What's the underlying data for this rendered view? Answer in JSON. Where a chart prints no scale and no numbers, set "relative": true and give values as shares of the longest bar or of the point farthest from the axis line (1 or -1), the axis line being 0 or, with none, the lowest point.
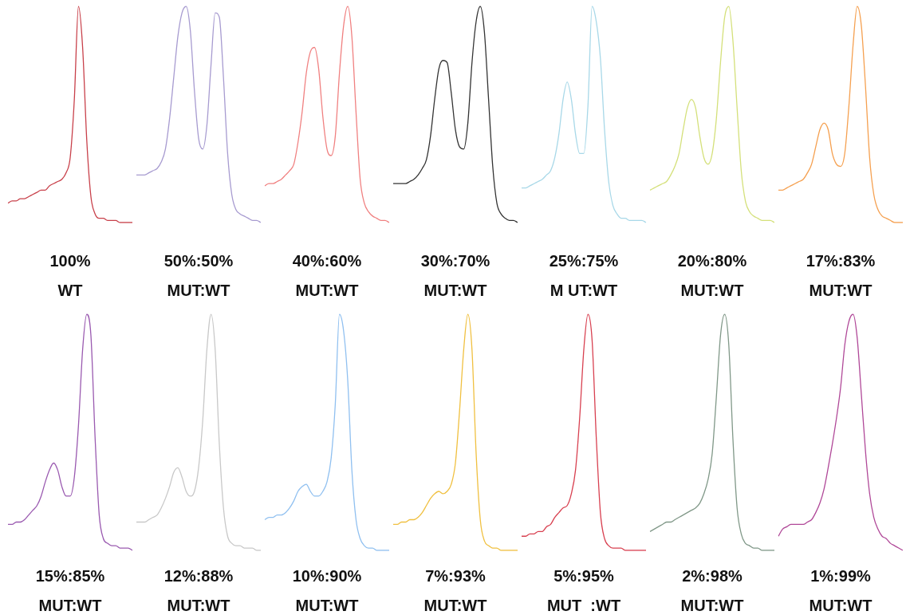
{
  "chart_data": [
    {
      "type": "line",
      "relative": true,
      "marker": "none",
      "categories": [
        null,
        null,
        null,
        null,
        null,
        null,
        null,
        null,
        null,
        null,
        null,
        null,
        null,
        null,
        null,
        null,
        null,
        null,
        null,
        null,
        null,
        null,
        null,
        null,
        null,
        null,
        null,
        null,
        null,
        null,
        null
      ],
      "series": [
        {
          "color": "#c8404a",
          "values": [
            0.09,
            0.1,
            0.1,
            0.11,
            0.11,
            0.12,
            0.13,
            0.14,
            0.15,
            0.15,
            0.17,
            0.18,
            0.19,
            0.2,
            0.23,
            0.3,
            0.57,
            1,
            0.81,
            0.38,
            0.12,
            0.04,
            0.02,
            0.02,
            0.01,
            0.01,
            0.01,
            0,
            0,
            0,
            0
          ]
        }
      ],
      "annotations": [
        "100%",
        "WT"
      ]
    },
    {
      "type": "line",
      "relative": true,
      "marker": "none",
      "categories": [
        null,
        null,
        null,
        null,
        null,
        null,
        null,
        null,
        null,
        null,
        null,
        null,
        null,
        null,
        null,
        null,
        null,
        null,
        null,
        null,
        null,
        null,
        null,
        null,
        null,
        null,
        null,
        null,
        null,
        null,
        null
      ],
      "series": [
        {
          "color": "#a79bd0",
          "values": [
            0.22,
            0.22,
            0.22,
            0.23,
            0.24,
            0.25,
            0.28,
            0.34,
            0.48,
            0.67,
            0.86,
            0.97,
            1,
            0.89,
            0.61,
            0.39,
            0.34,
            0.45,
            0.73,
            0.97,
            0.95,
            0.67,
            0.32,
            0.13,
            0.06,
            0.04,
            0.03,
            0.02,
            0.01,
            0.01,
            0
          ]
        }
      ],
      "annotations": [
        "50%:50%",
        "MUT:WT"
      ]
    },
    {
      "type": "line",
      "relative": true,
      "marker": "none",
      "categories": [
        null,
        null,
        null,
        null,
        null,
        null,
        null,
        null,
        null,
        null,
        null,
        null,
        null,
        null,
        null,
        null,
        null,
        null,
        null,
        null,
        null,
        null,
        null,
        null,
        null,
        null,
        null,
        null,
        null,
        null,
        null
      ],
      "series": [
        {
          "color": "#f08080",
          "values": [
            0.17,
            0.18,
            0.18,
            0.19,
            0.2,
            0.22,
            0.24,
            0.27,
            0.37,
            0.51,
            0.69,
            0.79,
            0.81,
            0.71,
            0.49,
            0.34,
            0.31,
            0.4,
            0.69,
            0.91,
            1,
            0.86,
            0.51,
            0.2,
            0.09,
            0.05,
            0.03,
            0.02,
            0.01,
            0.01,
            0
          ]
        }
      ],
      "annotations": [
        "40%:60%",
        "MUT:WT"
      ]
    },
    {
      "type": "line",
      "relative": true,
      "marker": "none",
      "categories": [
        null,
        null,
        null,
        null,
        null,
        null,
        null,
        null,
        null,
        null,
        null,
        null,
        null,
        null,
        null,
        null,
        null,
        null,
        null,
        null,
        null,
        null,
        null,
        null,
        null,
        null,
        null,
        null,
        null,
        null,
        null
      ],
      "series": [
        {
          "color": "#333333",
          "values": [
            0.18,
            0.18,
            0.18,
            0.18,
            0.19,
            0.2,
            0.22,
            0.25,
            0.29,
            0.4,
            0.57,
            0.71,
            0.75,
            0.74,
            0.6,
            0.43,
            0.35,
            0.34,
            0.46,
            0.74,
            0.93,
            1,
            0.88,
            0.57,
            0.26,
            0.09,
            0.04,
            0.02,
            0.01,
            0.01,
            0
          ]
        }
      ],
      "annotations": [
        "30%:70%",
        "MUT:WT"
      ]
    },
    {
      "type": "line",
      "relative": true,
      "marker": "none",
      "categories": [
        null,
        null,
        null,
        null,
        null,
        null,
        null,
        null,
        null,
        null,
        null,
        null,
        null,
        null,
        null,
        null,
        null,
        null,
        null,
        null,
        null,
        null,
        null,
        null,
        null,
        null,
        null,
        null,
        null,
        null,
        null
      ],
      "series": [
        {
          "color": "#a8d8e8",
          "values": [
            0.16,
            0.16,
            0.17,
            0.18,
            0.19,
            0.2,
            0.22,
            0.24,
            0.3,
            0.41,
            0.57,
            0.65,
            0.57,
            0.41,
            0.32,
            0.32,
            0.54,
            1,
            0.93,
            0.76,
            0.43,
            0.19,
            0.08,
            0.04,
            0.02,
            0.02,
            0.01,
            0.01,
            0.01,
            0.01,
            0
          ]
        }
      ],
      "annotations": [
        "25%:75%",
        "M UT:WT"
      ]
    },
    {
      "type": "line",
      "relative": true,
      "marker": "none",
      "categories": [
        null,
        null,
        null,
        null,
        null,
        null,
        null,
        null,
        null,
        null,
        null,
        null,
        null,
        null,
        null,
        null,
        null,
        null,
        null,
        null,
        null,
        null,
        null,
        null,
        null,
        null,
        null,
        null,
        null,
        null,
        null
      ],
      "series": [
        {
          "color": "#d4e07a",
          "values": [
            0.15,
            0.16,
            0.17,
            0.18,
            0.19,
            0.22,
            0.26,
            0.32,
            0.43,
            0.53,
            0.57,
            0.53,
            0.4,
            0.3,
            0.27,
            0.32,
            0.48,
            0.74,
            0.95,
            1,
            0.84,
            0.53,
            0.24,
            0.1,
            0.05,
            0.03,
            0.02,
            0.01,
            0.01,
            0.01,
            0
          ]
        }
      ],
      "annotations": [
        "20%:80%",
        "MUT:WT"
      ]
    },
    {
      "type": "line",
      "relative": true,
      "marker": "none",
      "categories": [
        null,
        null,
        null,
        null,
        null,
        null,
        null,
        null,
        null,
        null,
        null,
        null,
        null,
        null,
        null,
        null,
        null,
        null,
        null,
        null,
        null,
        null,
        null,
        null,
        null,
        null,
        null,
        null,
        null,
        null,
        null
      ],
      "series": [
        {
          "color": "#f5a050",
          "values": [
            0.15,
            0.15,
            0.16,
            0.17,
            0.18,
            0.19,
            0.2,
            0.23,
            0.27,
            0.35,
            0.43,
            0.46,
            0.43,
            0.32,
            0.27,
            0.26,
            0.32,
            0.54,
            0.82,
            1,
            0.91,
            0.63,
            0.3,
            0.13,
            0.06,
            0.03,
            0.02,
            0.01,
            0,
            0,
            0
          ]
        }
      ],
      "annotations": [
        "17%:83%",
        "MUT:WT"
      ]
    },
    {
      "type": "line",
      "relative": true,
      "marker": "none",
      "categories": [
        null,
        null,
        null,
        null,
        null,
        null,
        null,
        null,
        null,
        null,
        null,
        null,
        null,
        null,
        null,
        null,
        null,
        null,
        null,
        null,
        null,
        null,
        null,
        null,
        null,
        null,
        null,
        null,
        null,
        null,
        null
      ],
      "series": [
        {
          "color": "#9a5ab0",
          "values": [
            0.11,
            0.11,
            0.12,
            0.12,
            0.13,
            0.15,
            0.17,
            0.19,
            0.23,
            0.29,
            0.34,
            0.37,
            0.34,
            0.27,
            0.23,
            0.23,
            0.31,
            0.53,
            0.85,
            1,
            0.91,
            0.48,
            0.15,
            0.05,
            0.03,
            0.02,
            0.02,
            0.01,
            0.01,
            0.01,
            0
          ]
        }
      ],
      "annotations": [
        "15%:85%",
        "MUT:WT"
      ]
    },
    {
      "type": "line",
      "relative": true,
      "marker": "none",
      "categories": [
        null,
        null,
        null,
        null,
        null,
        null,
        null,
        null,
        null,
        null,
        null,
        null,
        null,
        null,
        null,
        null,
        null,
        null,
        null,
        null,
        null,
        null,
        null,
        null,
        null,
        null,
        null,
        null,
        null,
        null,
        null
      ],
      "series": [
        {
          "color": "#c8c8c8",
          "values": [
            0.12,
            0.12,
            0.12,
            0.13,
            0.14,
            0.15,
            0.18,
            0.22,
            0.27,
            0.33,
            0.35,
            0.31,
            0.25,
            0.23,
            0.25,
            0.35,
            0.55,
            0.85,
            1,
            0.85,
            0.45,
            0.18,
            0.06,
            0.03,
            0.02,
            0.02,
            0.01,
            0.01,
            0.01,
            0,
            0
          ]
        }
      ],
      "annotations": [
        "12%:88%",
        "MUT:WT"
      ]
    },
    {
      "type": "line",
      "relative": true,
      "marker": "none",
      "categories": [
        null,
        null,
        null,
        null,
        null,
        null,
        null,
        null,
        null,
        null,
        null,
        null,
        null,
        null,
        null,
        null,
        null,
        null,
        null,
        null,
        null,
        null,
        null,
        null,
        null,
        null,
        null,
        null,
        null,
        null,
        null
      ],
      "series": [
        {
          "color": "#90c0f0",
          "values": [
            0.13,
            0.14,
            0.14,
            0.15,
            0.15,
            0.16,
            0.18,
            0.21,
            0.25,
            0.27,
            0.28,
            0.25,
            0.23,
            0.23,
            0.25,
            0.29,
            0.39,
            0.62,
            1,
            0.93,
            0.72,
            0.34,
            0.13,
            0.05,
            0.02,
            0.01,
            0.01,
            0,
            0,
            0,
            0
          ]
        }
      ],
      "annotations": [
        "10%:90%",
        "MUT:WT"
      ]
    },
    {
      "type": "line",
      "relative": true,
      "marker": "none",
      "categories": [
        null,
        null,
        null,
        null,
        null,
        null,
        null,
        null,
        null,
        null,
        null,
        null,
        null,
        null,
        null,
        null,
        null,
        null,
        null,
        null,
        null,
        null,
        null,
        null,
        null,
        null,
        null,
        null,
        null,
        null,
        null
      ],
      "series": [
        {
          "color": "#f0c040",
          "values": [
            0.11,
            0.11,
            0.12,
            0.12,
            0.13,
            0.13,
            0.14,
            0.16,
            0.19,
            0.22,
            0.24,
            0.25,
            0.24,
            0.25,
            0.28,
            0.37,
            0.59,
            0.85,
            1,
            0.85,
            0.41,
            0.13,
            0.04,
            0.02,
            0.01,
            0.01,
            0,
            0,
            0,
            0,
            0
          ]
        }
      ],
      "annotations": [
        "7%:93%",
        "MUT:WT"
      ]
    },
    {
      "type": "line",
      "relative": true,
      "marker": "none",
      "categories": [
        null,
        null,
        null,
        null,
        null,
        null,
        null,
        null,
        null,
        null,
        null,
        null,
        null,
        null,
        null,
        null,
        null,
        null,
        null,
        null,
        null,
        null,
        null,
        null,
        null,
        null,
        null,
        null,
        null,
        null,
        null
      ],
      "series": [
        {
          "color": "#d84050",
          "values": [
            0.06,
            0.06,
            0.07,
            0.07,
            0.08,
            0.08,
            0.1,
            0.11,
            0.14,
            0.16,
            0.18,
            0.19,
            0.24,
            0.34,
            0.56,
            0.85,
            1,
            0.89,
            0.48,
            0.16,
            0.05,
            0.02,
            0.01,
            0.01,
            0.01,
            0,
            0,
            0,
            0,
            0,
            0
          ]
        }
      ],
      "annotations": [
        "5%:95%",
        "MUT  :WT"
      ]
    },
    {
      "type": "line",
      "relative": true,
      "marker": "none",
      "categories": [
        null,
        null,
        null,
        null,
        null,
        null,
        null,
        null,
        null,
        null,
        null,
        null,
        null,
        null,
        null,
        null,
        null,
        null,
        null,
        null,
        null,
        null,
        null,
        null,
        null,
        null,
        null,
        null,
        null,
        null,
        null
      ],
      "series": [
        {
          "color": "#809888",
          "values": [
            0.08,
            0.09,
            0.1,
            0.11,
            0.12,
            0.12,
            0.13,
            0.14,
            0.15,
            0.16,
            0.17,
            0.18,
            0.2,
            0.24,
            0.3,
            0.41,
            0.65,
            0.91,
            1,
            0.87,
            0.47,
            0.18,
            0.07,
            0.03,
            0.02,
            0.01,
            0.01,
            0,
            0,
            0,
            0
          ]
        }
      ],
      "annotations": [
        "2%:98%",
        "MUT:WT"
      ]
    },
    {
      "type": "line",
      "relative": true,
      "marker": "none",
      "categories": [
        null,
        null,
        null,
        null,
        null,
        null,
        null,
        null,
        null,
        null,
        null,
        null,
        null,
        null,
        null,
        null,
        null,
        null,
        null,
        null,
        null,
        null,
        null,
        null,
        null,
        null,
        null,
        null,
        null,
        null,
        null
      ],
      "series": [
        {
          "color": "#b04898",
          "values": [
            0.06,
            0.09,
            0.1,
            0.11,
            0.11,
            0.11,
            0.11,
            0.12,
            0.13,
            0.16,
            0.2,
            0.26,
            0.35,
            0.45,
            0.56,
            0.69,
            0.87,
            0.97,
            1,
            0.9,
            0.66,
            0.42,
            0.24,
            0.14,
            0.09,
            0.06,
            0.05,
            0.03,
            0.02,
            0.01,
            0
          ]
        }
      ],
      "annotations": [
        "1%:99%",
        "MUT:WT"
      ]
    }
  ]
}
